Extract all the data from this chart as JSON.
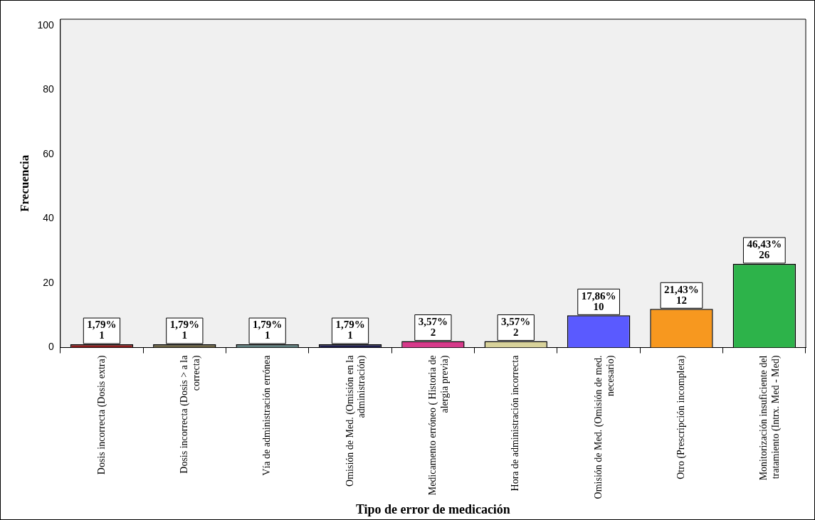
{
  "chart_data": {
    "type": "bar",
    "xlabel": "Tipo de error de medicación",
    "ylabel": "Frecuencia",
    "categories": [
      "Dosis incorrecta (Dosis extra)",
      "Dosis incorrecta (Dosis > a la correcta)",
      "Vía de administración errónea",
      "Omisión de Med. (Omisión en la administración)",
      "Medicamento erróneo ( Historia de alergia previa)",
      "Hora de administración incorrecta",
      "Omisión de Med. (Omisión de med. necesario)",
      "Otro (Prescripción incompleta)",
      "Monitorización insuficiente del tratamiento (Intrx. Med - Med)"
    ],
    "values": [
      1,
      1,
      1,
      1,
      2,
      2,
      10,
      12,
      26
    ],
    "colors": [
      "#8b1c1c",
      "#6b6242",
      "#5e7f7f",
      "#1c1c4c",
      "#d63a8a",
      "#d8d29a",
      "#5a5aff",
      "#f7981f",
      "#2db34a"
    ],
    "value_labels": [
      "1,79%\n1",
      "1,79%\n1",
      "1,79%\n1",
      "1,79%\n1",
      "3,57%\n2",
      "3,57%\n2",
      "17,86%\n10",
      "21,43%\n12",
      "46,43%\n26"
    ],
    "ylim": [
      0,
      102
    ],
    "yticks": [
      0,
      20,
      40,
      60,
      80,
      100
    ]
  }
}
